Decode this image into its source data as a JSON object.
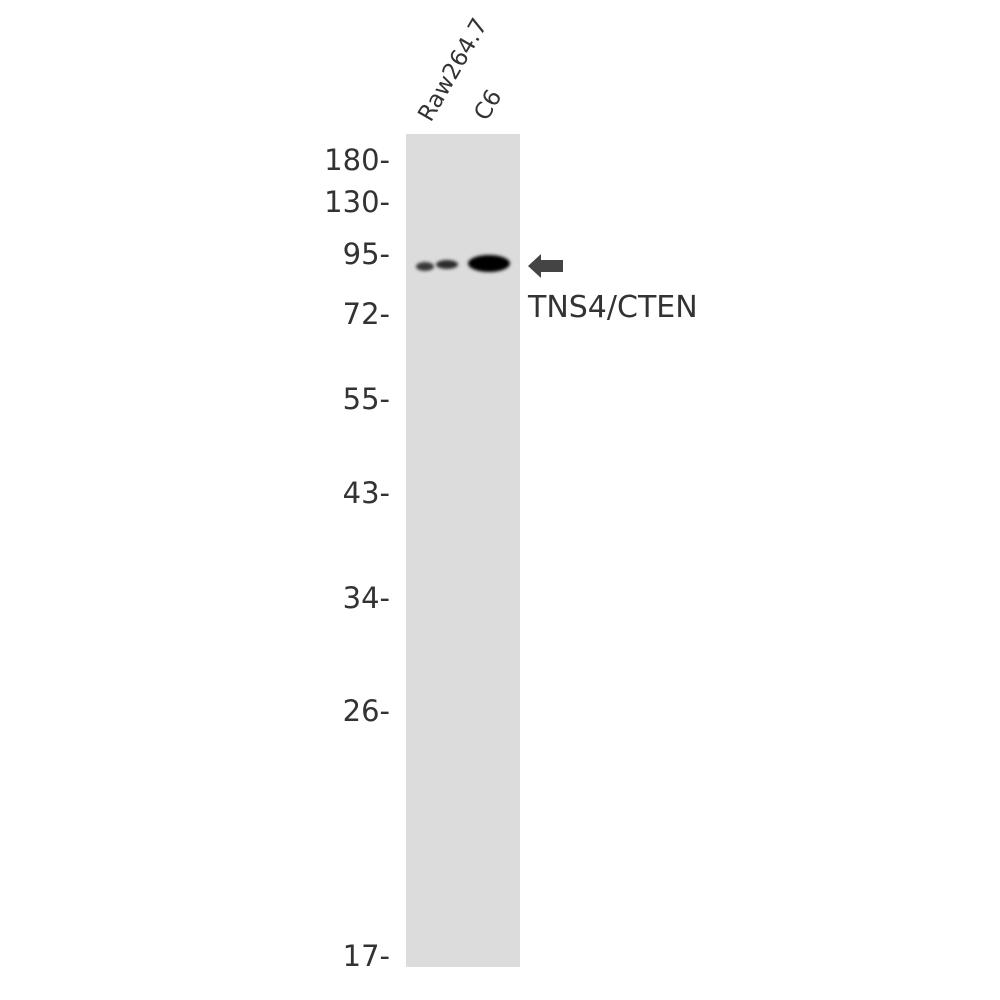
{
  "lanes": [
    {
      "label": "Raw264.7",
      "band_intensity": "weak"
    },
    {
      "label": "C6",
      "band_intensity": "strong"
    }
  ],
  "markers": [
    {
      "label": "180-",
      "kda": 180
    },
    {
      "label": "130-",
      "kda": 130
    },
    {
      "label": "95-",
      "kda": 95
    },
    {
      "label": "72-",
      "kda": 72
    },
    {
      "label": "55-",
      "kda": 55
    },
    {
      "label": "43-",
      "kda": 43
    },
    {
      "label": "34-",
      "kda": 34
    },
    {
      "label": "26-",
      "kda": 26
    },
    {
      "label": "17-",
      "kda": 17
    }
  ],
  "target": {
    "label": "TNS4/CTEN",
    "icon": "arrow-left-icon"
  },
  "colors": {
    "membrane": "#dcdcdc",
    "band": "#000000",
    "text": "#333333",
    "arrow": "#444444"
  }
}
